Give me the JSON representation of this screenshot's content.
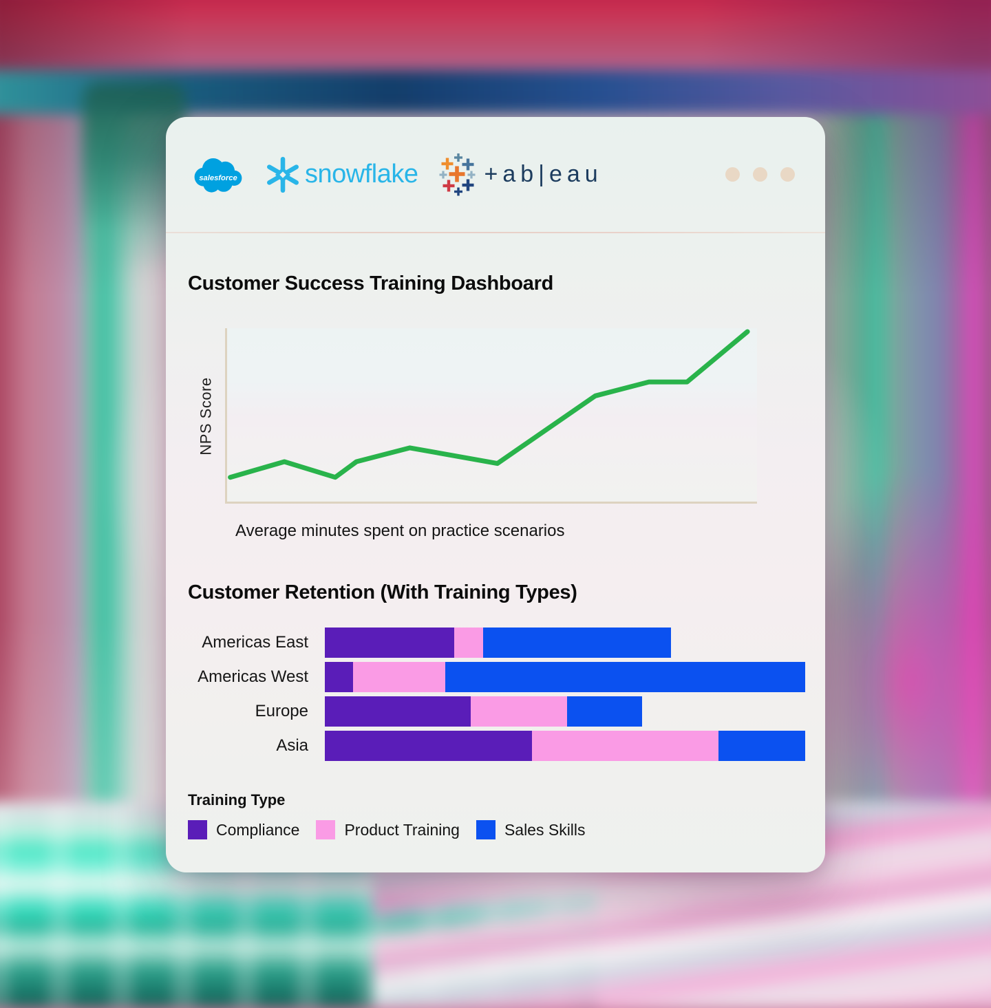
{
  "header": {
    "logos": [
      {
        "name": "salesforce",
        "label": "salesforce"
      },
      {
        "name": "snowflake",
        "label": "snowflake"
      },
      {
        "name": "tableau",
        "label": "tableau",
        "wordmark_display": "+ab|eau"
      }
    ],
    "window_dots_count": 3
  },
  "colors": {
    "salesforce_blue": "#00a1e0",
    "snowflake_blue": "#29b5e8",
    "tableau_navy": "#1c3c5e",
    "tableau_icon_palette": [
      "#ef8e2e",
      "#e8762d",
      "#46749c",
      "#5a87a0",
      "#93b2c4",
      "#cf3a44",
      "#20457f"
    ],
    "axis": "#ddd3c0",
    "window_dot": "#e9d8c5",
    "line_green": "#29b34b",
    "compliance_purple": "#5a1db8",
    "product_training_pink": "#fa9be5",
    "sales_skills_blue": "#0b51f0"
  },
  "chart_data": [
    {
      "type": "line",
      "title": "Customer Success Training Dashboard",
      "xlabel": "Average minutes spent on practice scenarios",
      "ylabel": "NPS Score",
      "legend": "none",
      "grid": false,
      "axis_tick_labels_visible": false,
      "x_range_pct": [
        0,
        100
      ],
      "y_range": [
        0,
        100
      ],
      "series": [
        {
          "name": "NPS Score",
          "color": "#29b34b",
          "points": [
            {
              "x": 0.6,
              "y": 14
            },
            {
              "x": 10.8,
              "y": 23
            },
            {
              "x": 20.4,
              "y": 14
            },
            {
              "x": 24.4,
              "y": 23
            },
            {
              "x": 34.5,
              "y": 31
            },
            {
              "x": 51.0,
              "y": 22
            },
            {
              "x": 69.5,
              "y": 61
            },
            {
              "x": 79.6,
              "y": 69
            },
            {
              "x": 86.8,
              "y": 69
            },
            {
              "x": 98.2,
              "y": 98
            }
          ]
        }
      ]
    },
    {
      "type": "bar",
      "orientation": "horizontal",
      "stacked": true,
      "title": "Customer Retention (With Training Types)",
      "legend_title": "Training Type",
      "legend_position": "bottom",
      "grid": false,
      "value_axis_visible": false,
      "x_range_pct": [
        0,
        100
      ],
      "categories": [
        "Americas East",
        "Americas West",
        "Europe",
        "Asia"
      ],
      "series": [
        {
          "name": "Compliance",
          "color": "#5a1db8",
          "values": [
            26.9,
            5.9,
            30.4,
            43.1
          ]
        },
        {
          "name": "Product Training",
          "color": "#fa9be5",
          "values": [
            6.0,
            19.2,
            20.1,
            38.8
          ]
        },
        {
          "name": "Sales Skills",
          "color": "#0b51f0",
          "values": [
            39.1,
            74.9,
            15.5,
            18.1
          ]
        }
      ]
    }
  ]
}
